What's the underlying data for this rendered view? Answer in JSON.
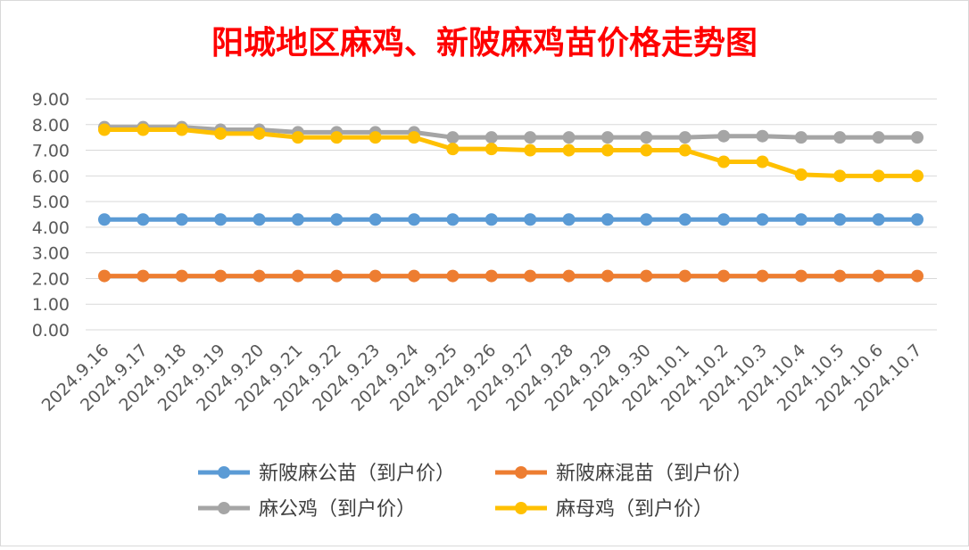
{
  "chart_data": {
    "type": "line",
    "title": "阳城地区麻鸡、新陂麻鸡苗价格走势图",
    "title_color": "#ff0000",
    "categories": [
      "2024.9.16",
      "2024.9.17",
      "2024.9.18",
      "2024.9.19",
      "2024.9.20",
      "2024.9.21",
      "2024.9.22",
      "2024.9.23",
      "2024.9.24",
      "2024.9.25",
      "2024.9.26",
      "2024.9.27",
      "2024.9.28",
      "2024.9.29",
      "2024.9.30",
      "2024.10.1",
      "2024.10.2",
      "2024.10.3",
      "2024.10.4",
      "2024.10.5",
      "2024.10.6",
      "2024.10.7"
    ],
    "ylim": [
      0,
      9
    ],
    "yticks": [
      "0.00",
      "1.00",
      "2.00",
      "3.00",
      "4.00",
      "5.00",
      "6.00",
      "7.00",
      "8.00",
      "9.00"
    ],
    "grid": true,
    "legend_position": "bottom",
    "series": [
      {
        "name": "新陂麻公苗（到户价）",
        "color": "#5b9bd5",
        "values": [
          4.3,
          4.3,
          4.3,
          4.3,
          4.3,
          4.3,
          4.3,
          4.3,
          4.3,
          4.3,
          4.3,
          4.3,
          4.3,
          4.3,
          4.3,
          4.3,
          4.3,
          4.3,
          4.3,
          4.3,
          4.3,
          4.3
        ]
      },
      {
        "name": "新陂麻混苗（到户价）",
        "color": "#ed7d31",
        "values": [
          2.1,
          2.1,
          2.1,
          2.1,
          2.1,
          2.1,
          2.1,
          2.1,
          2.1,
          2.1,
          2.1,
          2.1,
          2.1,
          2.1,
          2.1,
          2.1,
          2.1,
          2.1,
          2.1,
          2.1,
          2.1,
          2.1
        ]
      },
      {
        "name": "麻公鸡（到户价）",
        "color": "#a5a5a5",
        "values": [
          7.9,
          7.9,
          7.9,
          7.8,
          7.8,
          7.7,
          7.7,
          7.7,
          7.7,
          7.5,
          7.5,
          7.5,
          7.5,
          7.5,
          7.5,
          7.5,
          7.55,
          7.55,
          7.5,
          7.5,
          7.5,
          7.5
        ]
      },
      {
        "name": "麻母鸡（到户价）",
        "color": "#ffc000",
        "values": [
          7.8,
          7.8,
          7.8,
          7.65,
          7.65,
          7.5,
          7.5,
          7.5,
          7.5,
          7.05,
          7.05,
          7.0,
          7.0,
          7.0,
          7.0,
          7.0,
          6.55,
          6.55,
          6.05,
          6.0,
          6.0,
          6.0
        ]
      }
    ]
  }
}
